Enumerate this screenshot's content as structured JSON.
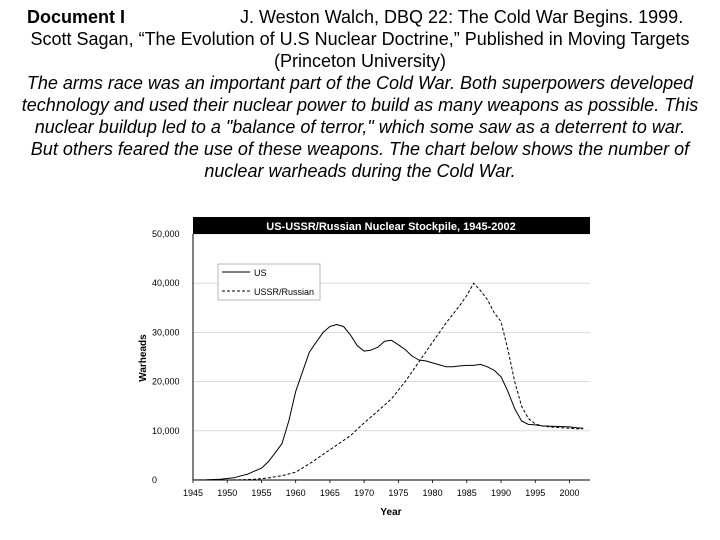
{
  "document": {
    "label": "Document I",
    "citation_line1": "J. Weston Walch, DBQ 22: The Cold War Begins. 1999.",
    "citation_line2": "Scott Sagan, “The Evolution of U.S Nuclear Doctrine,” Published in Moving Targets",
    "citation_line3": "(Princeton University)",
    "intro_lines": [
      "The arms race was an important part of the Cold War. Both superpowers developed",
      "technology and used their nuclear power to build as many weapons as possible. This",
      "nuclear buildup led to a \"balance of terror,\" which some saw as a deterrent to war.",
      "But others feared the use of these weapons. The chart below shows the number of",
      "nuclear warheads during the Cold War."
    ]
  },
  "chart_data": {
    "type": "line",
    "title": "US-USSR/Russian Nuclear Stockpile, 1945-2002",
    "xlabel": "Year",
    "ylabel": "Warheads",
    "xlim": [
      1945,
      2003
    ],
    "ylim": [
      0,
      50000
    ],
    "x_ticks": [
      1945,
      1950,
      1955,
      1960,
      1965,
      1970,
      1975,
      1980,
      1985,
      1990,
      1995,
      2000
    ],
    "x_tick_labels": [
      "1945",
      "1950",
      "1955",
      "1960",
      "1965",
      "1970",
      "1975",
      "1980",
      "1985",
      "1990",
      "1995",
      "2000"
    ],
    "y_ticks": [
      0,
      10000,
      20000,
      30000,
      40000,
      50000
    ],
    "y_tick_labels": [
      "0",
      "10,000",
      "20,000",
      "30,000",
      "40,000",
      "50,000"
    ],
    "grid": "horizontal",
    "legend_position": "top-left",
    "series": [
      {
        "name": "US",
        "style": "solid",
        "x": [
          1945,
          1947,
          1949,
          1950,
          1951,
          1952,
          1953,
          1954,
          1955,
          1956,
          1957,
          1958,
          1959,
          1960,
          1961,
          1962,
          1963,
          1964,
          1965,
          1966,
          1967,
          1968,
          1969,
          1970,
          1971,
          1972,
          1973,
          1974,
          1975,
          1976,
          1977,
          1978,
          1979,
          1980,
          1981,
          1982,
          1983,
          1984,
          1985,
          1986,
          1987,
          1988,
          1989,
          1990,
          1991,
          1992,
          1993,
          1994,
          1995,
          1996,
          1997,
          1998,
          1999,
          2000,
          2001,
          2002
        ],
        "values": [
          6,
          32,
          170,
          300,
          450,
          850,
          1200,
          1800,
          2400,
          3700,
          5500,
          7400,
          12000,
          18000,
          22000,
          26000,
          28000,
          30000,
          31200,
          31600,
          31200,
          29500,
          27300,
          26200,
          26400,
          27000,
          28200,
          28400,
          27500,
          26500,
          25200,
          24400,
          24200,
          23800,
          23400,
          23000,
          23000,
          23200,
          23300,
          23300,
          23500,
          23000,
          22300,
          21000,
          18000,
          14500,
          12000,
          11300,
          11200,
          11000,
          10950,
          10900,
          10850,
          10800,
          10600,
          10500
        ]
      },
      {
        "name": "USSR/Russian",
        "style": "dashed",
        "x": [
          1945,
          1949,
          1950,
          1952,
          1954,
          1956,
          1958,
          1960,
          1962,
          1964,
          1966,
          1968,
          1970,
          1972,
          1974,
          1976,
          1978,
          1980,
          1982,
          1984,
          1985,
          1986,
          1987,
          1988,
          1989,
          1990,
          1991,
          1992,
          1993,
          1994,
          1995,
          1996,
          1997,
          1998,
          1999,
          2000,
          2001,
          2002
        ],
        "values": [
          0,
          0,
          5,
          50,
          150,
          430,
          870,
          1600,
          3300,
          5200,
          7100,
          9000,
          11600,
          14000,
          16500,
          20000,
          24000,
          28000,
          32000,
          35500,
          37500,
          40000,
          38500,
          36700,
          34000,
          32200,
          26500,
          20000,
          15000,
          12500,
          11400,
          11000,
          10800,
          10700,
          10600,
          10500,
          10400,
          10400
        ]
      }
    ]
  }
}
